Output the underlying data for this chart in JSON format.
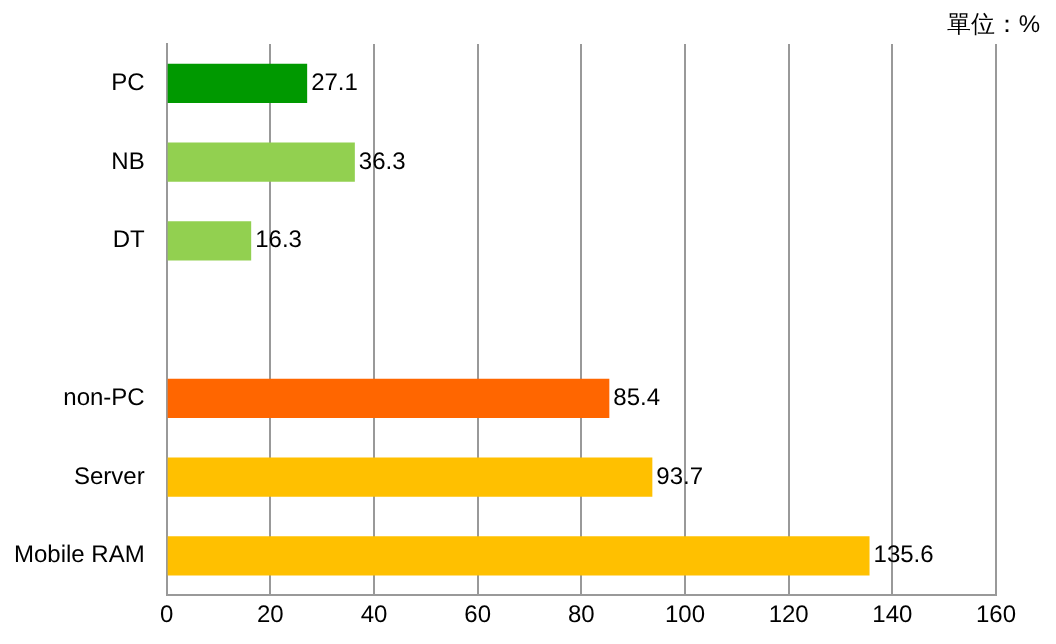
{
  "chart_data": {
    "type": "bar",
    "orientation": "horizontal",
    "categories": [
      "PC",
      "NB",
      "DT",
      null,
      "non-PC",
      "Server",
      "Mobile RAM"
    ],
    "values": [
      27.1,
      36.3,
      16.3,
      null,
      85.4,
      93.7,
      135.6
    ],
    "colors": [
      "#009900",
      "#92d050",
      "#92d050",
      "#92d050",
      "#ff6600",
      "#ffc000",
      "#ffc000"
    ],
    "xlim": [
      0,
      160
    ],
    "xticks": [
      0,
      20,
      40,
      60,
      80,
      100,
      120,
      140,
      160
    ],
    "grid": "x",
    "data_labels": true,
    "legend": false,
    "annotations": [
      "單位：%"
    ]
  }
}
